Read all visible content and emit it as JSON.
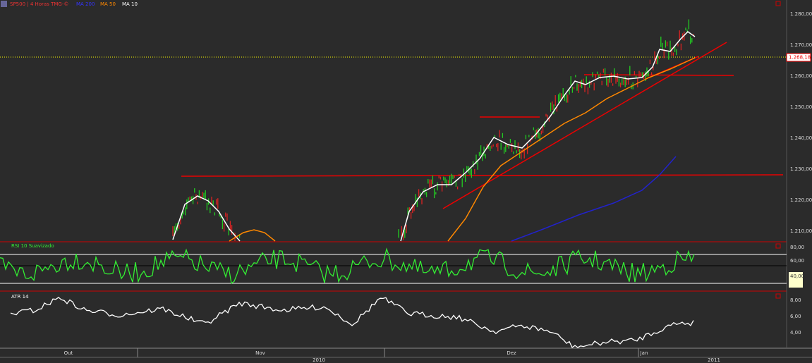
{
  "header": {
    "symbol": "SP500 | 4 Horas TMG-©",
    "indicators": [
      "MA 200",
      "MA 50",
      "MA 10"
    ]
  },
  "price_axis": {
    "ticks": [
      "1.280,00",
      "1.270,00",
      "1.260,00",
      "1.250,00",
      "1.240,00",
      "1.230,00",
      "1.220,00",
      "1.210,00"
    ],
    "last_price": "1.268,18"
  },
  "rsi_panel": {
    "label": "RSI 10 Suavizado",
    "ticks": [
      "80,00",
      "60,00",
      "40,00"
    ]
  },
  "atr_panel": {
    "label": "ATR 14",
    "ticks": [
      "8,00",
      "6,00",
      "4,00"
    ]
  },
  "time_axis": {
    "months": [
      "Out",
      "Nov",
      "Dez",
      "Jan"
    ],
    "years": [
      "2010",
      "2011"
    ]
  }
}
